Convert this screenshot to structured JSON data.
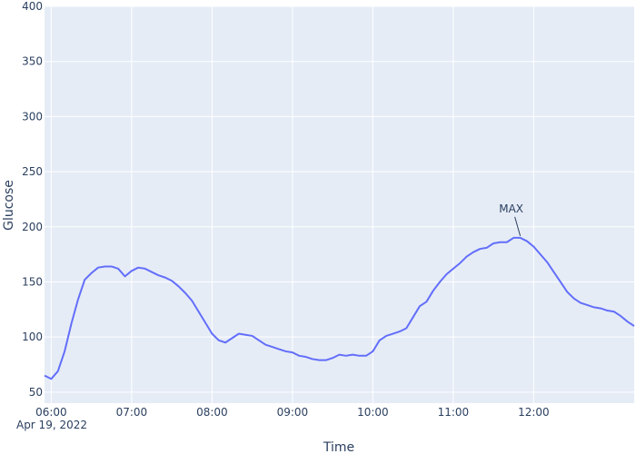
{
  "chart_data": {
    "type": "line",
    "title": "",
    "xlabel": "Time",
    "ylabel": "Glucose",
    "x_start_label": "Apr 19, 2022",
    "xlim": [
      "05:55",
      "13:15"
    ],
    "ylim": [
      40,
      400
    ],
    "grid": true,
    "y_ticks": [
      50,
      100,
      150,
      200,
      250,
      300,
      350,
      400
    ],
    "x_ticks": [
      "06:00",
      "07:00",
      "08:00",
      "09:00",
      "10:00",
      "11:00",
      "12:00"
    ],
    "colors": {
      "line": "#636efa",
      "plot_bg": "#e5ecf6",
      "grid": "#ffffff"
    },
    "series": [
      {
        "x": [
          "05:55",
          "06:00",
          "06:05",
          "06:10",
          "06:15",
          "06:20",
          "06:25",
          "06:30",
          "06:35",
          "06:40",
          "06:45",
          "06:50",
          "06:55",
          "07:00",
          "07:05",
          "07:10",
          "07:15",
          "07:20",
          "07:25",
          "07:30",
          "07:35",
          "07:40",
          "07:45",
          "07:50",
          "07:55",
          "08:00",
          "08:05",
          "08:10",
          "08:15",
          "08:20",
          "08:25",
          "08:30",
          "08:35",
          "08:40",
          "08:45",
          "08:50",
          "08:55",
          "09:00",
          "09:05",
          "09:10",
          "09:15",
          "09:20",
          "09:25",
          "09:30",
          "09:35",
          "09:40",
          "09:45",
          "09:50",
          "09:55",
          "10:00",
          "10:05",
          "10:10",
          "10:15",
          "10:20",
          "10:25",
          "10:30",
          "10:35",
          "10:40",
          "10:45",
          "10:50",
          "10:55",
          "11:00",
          "11:05",
          "11:10",
          "11:15",
          "11:20",
          "11:25",
          "11:30",
          "11:35",
          "11:40",
          "11:45",
          "11:50",
          "11:55",
          "12:00",
          "12:05",
          "12:10",
          "12:15",
          "12:20",
          "12:25",
          "12:30",
          "12:35",
          "12:40",
          "12:45",
          "12:50",
          "12:55",
          "13:00",
          "13:05",
          "13:10",
          "13:15"
        ],
        "y": [
          65,
          62,
          69,
          87,
          112,
          134,
          152,
          158,
          163,
          164,
          164,
          162,
          155,
          160,
          163,
          162,
          159,
          156,
          154,
          151,
          146,
          140,
          133,
          123,
          113,
          103,
          97,
          95,
          99,
          103,
          102,
          101,
          97,
          93,
          91,
          89,
          87,
          86,
          83,
          82,
          80,
          79,
          79,
          81,
          84,
          83,
          84,
          83,
          83,
          87,
          97,
          101,
          103,
          105,
          108,
          118,
          128,
          132,
          142,
          150,
          157,
          162,
          167,
          173,
          177,
          180,
          181,
          185,
          186,
          186,
          190,
          190,
          187,
          182,
          175,
          168,
          159,
          150,
          141,
          135,
          131,
          129,
          127,
          126,
          124,
          123,
          119,
          114,
          110
        ]
      }
    ],
    "annotations": [
      {
        "text": "MAX",
        "x": "11:50",
        "y": 190
      }
    ]
  }
}
